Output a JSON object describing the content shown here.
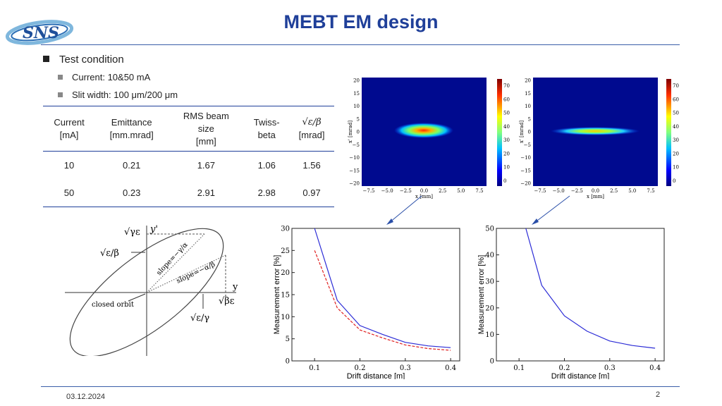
{
  "slide": {
    "title": "MEBT EM design",
    "logo_text": "SNS",
    "date": "03.12.2024",
    "page_number": "2"
  },
  "bullets": {
    "main": "Test condition",
    "sub": [
      "Current: 10&50 mA",
      "Slit width: 100 μm/200 μm"
    ]
  },
  "table": {
    "headers": [
      [
        "Current",
        "[mA]"
      ],
      [
        "Emittance",
        "[mm.mrad]"
      ],
      [
        "RMS beam",
        "size",
        "[mm]"
      ],
      [
        "Twiss-",
        "beta"
      ],
      [
        "√ε/β",
        "[mrad]"
      ]
    ],
    "rows": [
      [
        "10",
        "0.21",
        "1.67",
        "1.06",
        "1.56"
      ],
      [
        "50",
        "0.23",
        "2.91",
        "2.98",
        "0.97"
      ]
    ]
  },
  "phase_plots": {
    "xlabel": "x [mm]",
    "ylabel": "x' [mrad]",
    "x_ticks": [
      "−7.5",
      "−5.0",
      "−2.5",
      "0.0",
      "2.5",
      "5.0",
      "7.5"
    ],
    "y_ticks": [
      "20",
      "15",
      "10",
      "5",
      "0",
      "−5",
      "−10",
      "−15",
      "−20"
    ],
    "colorbar_ticks": [
      "70",
      "60",
      "50",
      "40",
      "30",
      "20",
      "10",
      "0"
    ]
  },
  "ellipse": {
    "labels": {
      "sqrt_gamma_eps": "√γε",
      "y_prime": "y'",
      "sqrt_eps_beta": "√ε/β",
      "slope1": "slope=−γ/α",
      "slope2": "slope=−α/β",
      "y_axis": "y",
      "sqrt_beta_eps": "√βε",
      "closed_orbit": "closed orbit",
      "sqrt_eps_gamma": "√ε/γ"
    }
  },
  "chart_data": [
    {
      "type": "line",
      "xlabel": "Drift distance [m]",
      "ylabel": "Measurement error [%]",
      "xlim": [
        0.05,
        0.42
      ],
      "ylim": [
        0,
        30
      ],
      "x_ticks": [
        "0.1",
        "0.2",
        "0.3",
        "0.4"
      ],
      "y_ticks": [
        "0",
        "5",
        "10",
        "15",
        "20",
        "25",
        "30"
      ],
      "series": [
        {
          "color": "#2b2bd6",
          "style": "solid",
          "x": [
            0.1,
            0.15,
            0.2,
            0.25,
            0.3,
            0.35,
            0.4
          ],
          "y": [
            30,
            13.7,
            8.0,
            6.0,
            4.2,
            3.4,
            3.0
          ]
        },
        {
          "color": "#e02020",
          "style": "dashed",
          "x": [
            0.1,
            0.15,
            0.2,
            0.25,
            0.3,
            0.35,
            0.4
          ],
          "y": [
            25,
            12,
            7,
            5.2,
            3.6,
            2.8,
            2.4
          ]
        }
      ]
    },
    {
      "type": "line",
      "xlabel": "Drift distance [m]",
      "ylabel": "Measurement error [%]",
      "xlim": [
        0.05,
        0.42
      ],
      "ylim": [
        0,
        50
      ],
      "x_ticks": [
        "0.1",
        "0.2",
        "0.3",
        "0.4"
      ],
      "y_ticks": [
        "0",
        "10",
        "20",
        "30",
        "40",
        "50"
      ],
      "series": [
        {
          "color": "#2b2bd6",
          "style": "solid",
          "x": [
            0.115,
            0.15,
            0.2,
            0.25,
            0.3,
            0.35,
            0.4
          ],
          "y": [
            50,
            28.5,
            17,
            11.2,
            7.5,
            5.8,
            4.8
          ]
        }
      ]
    }
  ]
}
